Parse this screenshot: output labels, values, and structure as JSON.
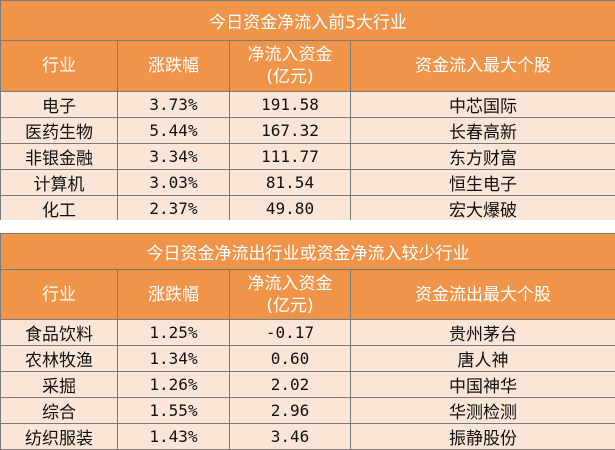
{
  "table1": {
    "title": "今日资金净流入前5大行业",
    "headers": [
      "行业",
      "涨跌幅",
      "净流入资金\n(亿元)",
      "资金流入最大个股"
    ],
    "header_net_line1": "净流入资金",
    "header_net_line2": "(亿元)",
    "rows": [
      {
        "industry": "电子",
        "change": "3.73%",
        "net": "191.58",
        "stock": "中芯国际"
      },
      {
        "industry": "医药生物",
        "change": "5.44%",
        "net": "167.32",
        "stock": "长春高新"
      },
      {
        "industry": "非银金融",
        "change": "3.34%",
        "net": "111.77",
        "stock": "东方财富"
      },
      {
        "industry": "计算机",
        "change": "3.03%",
        "net": "81.54",
        "stock": "恒生电子"
      },
      {
        "industry": "化工",
        "change": "2.37%",
        "net": "49.80",
        "stock": "宏大爆破"
      }
    ]
  },
  "table2": {
    "title": "今日资金净流出行业或资金净流入较少行业",
    "header_industry": "行业",
    "header_change": "涨跌幅",
    "header_net_line1": "净流入资金",
    "header_net_line2": "(亿元)",
    "header_stock": "资金流出最大个股",
    "rows": [
      {
        "industry": "食品饮料",
        "change": "1.25%",
        "net": "-0.17",
        "stock": "贵州茅台"
      },
      {
        "industry": "农林牧渔",
        "change": "1.34%",
        "net": "0.60",
        "stock": "唐人神"
      },
      {
        "industry": "采掘",
        "change": "1.26%",
        "net": "2.02",
        "stock": "中国神华"
      },
      {
        "industry": "综合",
        "change": "1.55%",
        "net": "2.96",
        "stock": "华测检测"
      },
      {
        "industry": "纺织服装",
        "change": "1.43%",
        "net": "3.46",
        "stock": "振静股份"
      }
    ]
  },
  "colors": {
    "header_bg": "#f0944a",
    "row_bg": "#fbe5d6",
    "border": "#7a7a7a"
  }
}
